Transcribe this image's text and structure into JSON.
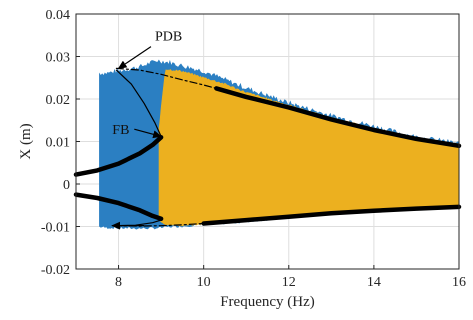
{
  "chart_data": {
    "type": "area",
    "title": "",
    "xlabel": "Frequency (Hz)",
    "ylabel": "X (m)",
    "xlim": [
      7,
      16
    ],
    "ylim": [
      -0.02,
      0.04
    ],
    "xticks": [
      8,
      10,
      12,
      14,
      16
    ],
    "yticks": [
      -0.02,
      -0.01,
      0,
      0.01,
      0.02,
      0.03,
      0.04
    ],
    "xtick_labels": [
      "8",
      "10",
      "12",
      "14",
      "16"
    ],
    "ytick_labels": [
      "-0.02",
      "-0.01",
      "0",
      "0.01",
      "0.02",
      "0.03",
      "0.04"
    ],
    "grid": true,
    "colors": {
      "blue_series": "#2b7fc2",
      "orange_series": "#ecb01f",
      "stable_branch": "#000000",
      "unstable_branch": "#000000"
    },
    "series": [
      {
        "style": "filled-envelope",
        "color": "#2b7fc2",
        "x": [
          7.55,
          7.7,
          8.0,
          8.5,
          8.9,
          9.2,
          9.6,
          10.0,
          10.5,
          11.0,
          12.0,
          13.0,
          14.0,
          15.0,
          16.0
        ],
        "upper": [
          0.026,
          0.026,
          0.0265,
          0.0275,
          0.029,
          0.0285,
          0.0275,
          0.0265,
          0.0245,
          0.0225,
          0.019,
          0.016,
          0.0135,
          0.011,
          0.0095
        ],
        "lower": [
          -0.01,
          -0.0102,
          -0.0103,
          -0.0104,
          -0.0103,
          -0.01,
          -0.0098,
          -0.0095,
          -0.0092,
          -0.0088,
          -0.0078,
          -0.007,
          -0.0064,
          -0.0059,
          -0.0055
        ]
      },
      {
        "style": "filled-envelope",
        "color": "#ecb01f",
        "x": [
          8.95,
          9.1,
          9.5,
          10.0,
          10.5,
          11.0,
          12.0,
          13.0,
          14.0,
          15.0,
          16.0
        ],
        "upper": [
          0.013,
          0.027,
          0.0265,
          0.025,
          0.0235,
          0.0215,
          0.0185,
          0.0155,
          0.013,
          0.0108,
          0.0093
        ],
        "lower": [
          -0.0085,
          -0.0095,
          -0.0098,
          -0.0094,
          -0.0091,
          -0.0087,
          -0.0078,
          -0.007,
          -0.0064,
          -0.0059,
          -0.0055
        ]
      },
      {
        "style": "stable-branch-upper-high",
        "color": "#000000",
        "x": [
          10.3,
          11.0,
          12.0,
          13.0,
          14.0,
          15.0,
          16.0
        ],
        "y": [
          0.0225,
          0.0205,
          0.018,
          0.0152,
          0.0127,
          0.0106,
          0.009
        ]
      },
      {
        "style": "unstable-branch-upper-high",
        "color": "#000000",
        "x": [
          7.95,
          8.5,
          9.0,
          9.5,
          10.0,
          10.3
        ],
        "y": [
          0.0272,
          0.0268,
          0.0258,
          0.0245,
          0.0233,
          0.0225
        ]
      },
      {
        "style": "unstable-branch-upper-middle",
        "color": "#000000",
        "x": [
          7.95,
          8.3,
          8.6,
          8.85,
          9.0
        ],
        "y": [
          0.0268,
          0.0235,
          0.019,
          0.0145,
          0.0112
        ]
      },
      {
        "style": "stable-branch-upper-low",
        "color": "#000000",
        "x": [
          7.0,
          7.5,
          8.0,
          8.5,
          8.8,
          9.0
        ],
        "y": [
          0.0022,
          0.0032,
          0.0048,
          0.0072,
          0.0092,
          0.011
        ]
      },
      {
        "style": "stable-branch-lower-low",
        "color": "#000000",
        "x": [
          7.0,
          7.5,
          8.0,
          8.5,
          8.8,
          9.0
        ],
        "y": [
          -0.0025,
          -0.0033,
          -0.0045,
          -0.0062,
          -0.0075,
          -0.0082
        ]
      },
      {
        "style": "unstable-branch-lower",
        "color": "#000000",
        "x": [
          7.9,
          8.4,
          8.8,
          9.0
        ],
        "y": [
          -0.0098,
          -0.0097,
          -0.0091,
          -0.0085
        ]
      },
      {
        "style": "unstable-branch-lower-high",
        "color": "#000000",
        "x": [
          7.9,
          8.5,
          9.0,
          9.5,
          10.0
        ],
        "y": [
          -0.0098,
          -0.0099,
          -0.0098,
          -0.0096,
          -0.0093
        ]
      },
      {
        "style": "stable-branch-lower-high",
        "color": "#000000",
        "x": [
          10.0,
          11.0,
          12.0,
          13.0,
          14.0,
          15.0,
          16.0
        ],
        "y": [
          -0.0093,
          -0.0085,
          -0.0077,
          -0.0069,
          -0.0063,
          -0.0058,
          -0.0054
        ]
      }
    ],
    "annotations": [
      {
        "text": "PDB",
        "text_at": [
          8.95,
          0.0342
        ],
        "arrow_to": [
          8.0,
          0.0272
        ]
      },
      {
        "text": "FB",
        "text_at": [
          7.9,
          0.0122
        ],
        "arrow_to": [
          9.0,
          0.0112
        ]
      },
      {
        "text": "",
        "text_at": [
          8.6,
          -0.0098
        ],
        "arrow_to": [
          7.85,
          -0.0098
        ]
      }
    ]
  }
}
